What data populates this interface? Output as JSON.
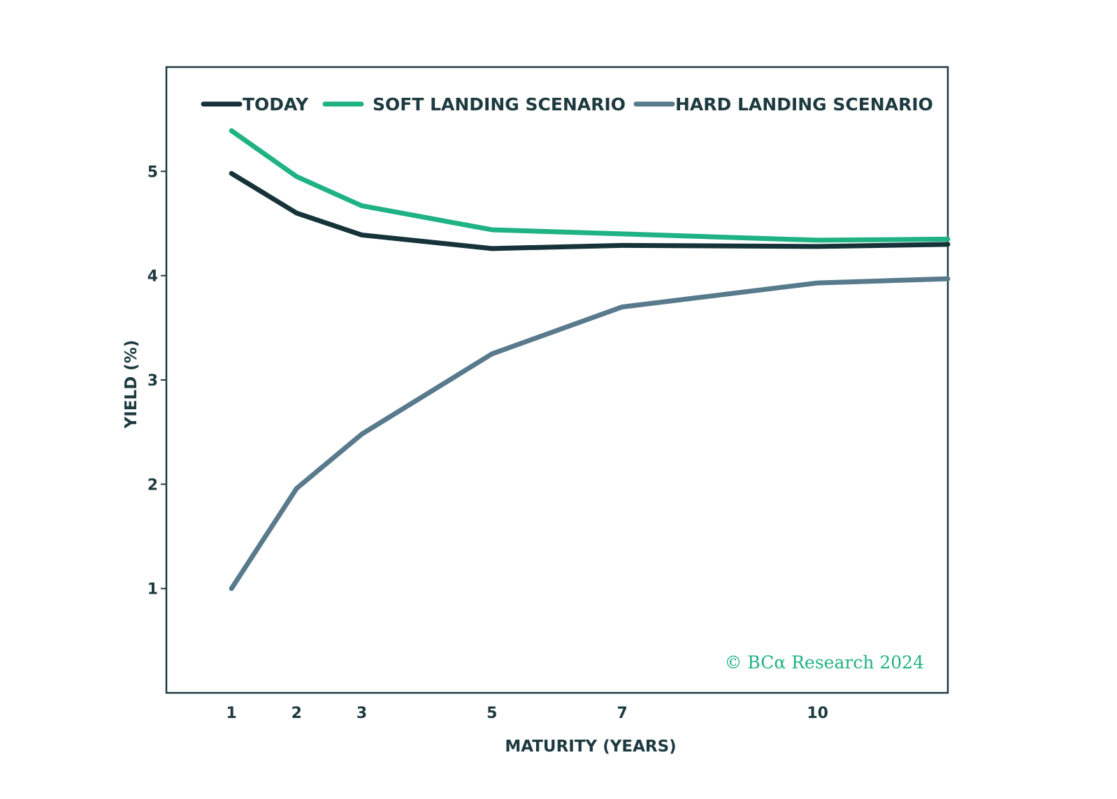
{
  "chart_data": {
    "type": "line",
    "title": "",
    "xlabel": "MATURITY (YEARS)",
    "ylabel": "YIELD (%)",
    "xlim": [
      0,
      12
    ],
    "ylim": [
      0,
      6
    ],
    "xticks": [
      1,
      2,
      3,
      5,
      7,
      10
    ],
    "yticks": [
      1,
      2,
      3,
      4,
      5
    ],
    "grid": false,
    "legend_position": "top",
    "x": [
      1,
      2,
      3,
      5,
      7,
      10,
      12
    ],
    "series": [
      {
        "name": "TODAY",
        "color": "#16333a",
        "values": [
          4.98,
          4.6,
          4.39,
          4.26,
          4.29,
          4.28,
          4.3
        ]
      },
      {
        "name": "SOFT LANDING SCENARIO",
        "color": "#1fb283",
        "values": [
          5.39,
          4.95,
          4.67,
          4.44,
          4.4,
          4.34,
          4.35
        ]
      },
      {
        "name": "HARD LANDING SCENARIO",
        "color": "#587a8c",
        "values": [
          1.0,
          1.96,
          2.48,
          3.25,
          3.7,
          3.93,
          3.97
        ]
      }
    ],
    "watermark": "© BCα Research 2024",
    "watermark_color": "#1fb283"
  }
}
